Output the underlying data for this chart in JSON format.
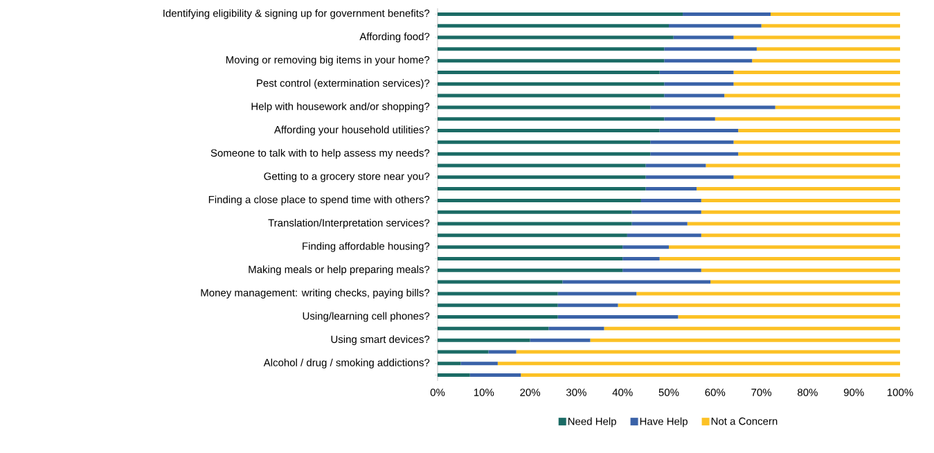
{
  "chart_data": {
    "type": "bar",
    "orientation": "horizontal",
    "stacked": true,
    "categories": [
      "Identifying eligibility & signing up for government benefits?",
      null,
      "Affording food?",
      null,
      "Moving or removing big items in your home?",
      null,
      "Pest control (extermination services)?",
      null,
      "Help with housework and/or shopping?",
      null,
      "Affording your household utilities?",
      null,
      "Someone to talk with to help assess my needs?",
      null,
      "Getting to a grocery store near you?",
      null,
      "Finding a close place to spend time with others?",
      null,
      "Translation/Interpretation services?",
      null,
      "Finding affordable housing?",
      null,
      "Making meals or help preparing meals?",
      null,
      "Money management: writing checks, paying bills?",
      null,
      "Using/learning cell phones?",
      null,
      "Using smart devices?",
      null,
      "Alcohol / drug / smoking addictions?",
      null
    ],
    "series": [
      {
        "name": "Need Help",
        "color": "#1b6b65",
        "values": [
          53,
          50,
          51,
          49,
          49,
          48,
          49,
          49,
          46,
          49,
          48,
          46,
          46,
          45,
          45,
          45,
          44,
          42,
          42,
          41,
          40,
          40,
          40,
          27,
          26,
          26,
          26,
          24,
          20,
          11,
          5,
          7
        ]
      },
      {
        "name": "Have Help",
        "color": "#3a62a8",
        "values": [
          19,
          20,
          13,
          20,
          19,
          16,
          15,
          13,
          27,
          11,
          17,
          18,
          19,
          13,
          19,
          11,
          13,
          15,
          12,
          16,
          10,
          8,
          17,
          32,
          17,
          13,
          26,
          12,
          13,
          6,
          8,
          11
        ]
      },
      {
        "name": "Not a Concern",
        "color": "#fcc125",
        "values": [
          28,
          30,
          36,
          31,
          32,
          36,
          36,
          38,
          27,
          40,
          35,
          36,
          35,
          42,
          36,
          44,
          43,
          43,
          46,
          43,
          50,
          52,
          43,
          41,
          57,
          61,
          48,
          64,
          67,
          83,
          87,
          82
        ]
      }
    ],
    "xlim": [
      0,
      100
    ],
    "xticks": [
      {
        "value": 0,
        "label": "0%"
      },
      {
        "value": 10,
        "label": "10%"
      },
      {
        "value": 20,
        "label": "20%"
      },
      {
        "value": 30,
        "label": "30%"
      },
      {
        "value": 40,
        "label": "40%"
      },
      {
        "value": 50,
        "label": "50%"
      },
      {
        "value": 60,
        "label": "60%"
      },
      {
        "value": 70,
        "label": "70%"
      },
      {
        "value": 80,
        "label": "80%"
      },
      {
        "value": 90,
        "label": "90%"
      },
      {
        "value": 100,
        "label": "100%"
      }
    ],
    "grid": false,
    "legend": "bottom"
  }
}
